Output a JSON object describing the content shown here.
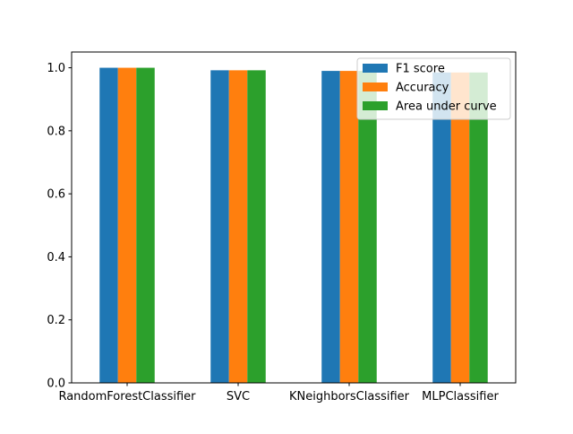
{
  "chart_data": {
    "type": "bar",
    "title": "",
    "xlabel": "",
    "ylabel": "",
    "categories": [
      "RandomForestClassifier",
      "SVC",
      "KNeighborsClassifier",
      "MLPClassifier"
    ],
    "series": [
      {
        "name": "F1 score",
        "color": "#1f77b4",
        "values": [
          1.0,
          0.992,
          0.99,
          0.985
        ]
      },
      {
        "name": "Accuracy",
        "color": "#ff7f0e",
        "values": [
          1.0,
          0.992,
          0.99,
          0.985
        ]
      },
      {
        "name": "Area under curve",
        "color": "#2ca02c",
        "values": [
          1.0,
          0.992,
          0.99,
          0.985
        ]
      }
    ],
    "ylim": [
      0,
      1.05
    ],
    "yticks": [
      0.0,
      0.2,
      0.4,
      0.6,
      0.8,
      1.0
    ],
    "ytick_labels": [
      "0.0",
      "0.2",
      "0.4",
      "0.6",
      "0.8",
      "1.0"
    ],
    "grid": false,
    "legend_position": "top-right"
  }
}
